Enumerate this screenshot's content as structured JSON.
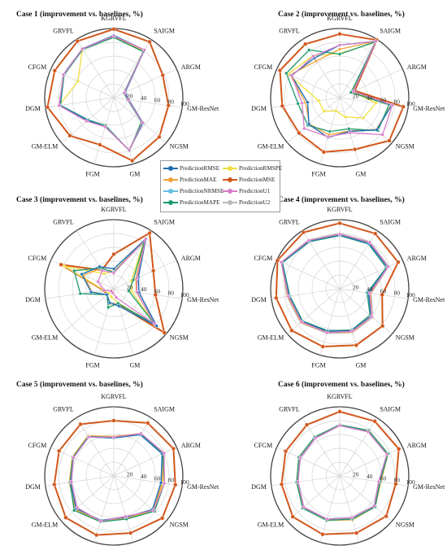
{
  "chart_data": [
    {
      "type": "radar",
      "title": "Case 1  (improvement vs. baselines, %)",
      "categories": [
        "KGRVFL",
        "SAIGM",
        "ARGM",
        "GM-ResNet",
        "NGSM",
        "GM",
        "FGM",
        "GM-ELM",
        "DGM",
        "CFGM",
        "GRVFL"
      ],
      "rlim": [
        0,
        100
      ],
      "rticks": [
        20,
        40,
        60,
        80,
        100
      ],
      "series": [
        {
          "name": "PredictionRMSE",
          "values": [
            90,
            82,
            18,
            22,
            56,
            79,
            44,
            50,
            79,
            80,
            84
          ]
        },
        {
          "name": "PredictionMAE",
          "values": [
            88,
            80,
            16,
            21,
            55,
            80,
            44,
            50,
            80,
            80,
            83
          ]
        },
        {
          "name": "PredictionNRMSE",
          "values": [
            90,
            82,
            18,
            22,
            56,
            79,
            44,
            50,
            79,
            80,
            84
          ]
        },
        {
          "name": "PredictionMAPE",
          "values": [
            87,
            79,
            16,
            20,
            53,
            80,
            42,
            49,
            78,
            79,
            83
          ]
        },
        {
          "name": "PredictionRMSPE",
          "values": [
            88,
            82,
            17,
            21,
            56,
            79,
            44,
            50,
            80,
            57,
            84
          ]
        },
        {
          "name": "PredictionMSE",
          "values": [
            99,
            96,
            78,
            80,
            87,
            95,
            71,
            84,
            97,
            94,
            97
          ]
        },
        {
          "name": "PredictionU1",
          "values": [
            89,
            82,
            17,
            21,
            55,
            79,
            44,
            52,
            80,
            80,
            84
          ]
        },
        {
          "name": "PredictionU2",
          "values": [
            90,
            82,
            18,
            22,
            56,
            79,
            44,
            50,
            79,
            80,
            84
          ]
        }
      ]
    },
    {
      "type": "radar",
      "title": "Case 2  (improvement vs. baselines, %)",
      "categories": [
        "KGRVFL",
        "SAIGM",
        "ARGM",
        "GM-ResNet",
        "NGSM",
        "GM",
        "FGM",
        "GM-ELM",
        "DGM",
        "CFGM",
        "GRVFL"
      ],
      "rlim": [
        0,
        100
      ],
      "rticks": [
        20,
        40,
        60,
        80,
        100
      ],
      "series": [
        {
          "name": "PredictionRMSE",
          "values": [
            76,
            97,
            22,
            76,
            71,
            51,
            60,
            59,
            47,
            77,
            68
          ]
        },
        {
          "name": "PredictionMAE",
          "values": [
            70,
            97,
            20,
            75,
            70,
            50,
            56,
            58,
            50,
            79,
            63
          ]
        },
        {
          "name": "PredictionNRMSE",
          "values": [
            76,
            97,
            22,
            76,
            71,
            51,
            60,
            59,
            47,
            77,
            68
          ]
        },
        {
          "name": "PredictionMAPE",
          "values": [
            63,
            96,
            18,
            72,
            73,
            47,
            51,
            61,
            61,
            85,
            82
          ]
        },
        {
          "name": "PredictionRMSPE",
          "values": [
            64,
            95,
            20,
            53,
            45,
            29,
            20,
            30,
            31,
            82,
            72
          ]
        },
        {
          "name": "PredictionMSE",
          "values": [
            92,
            99,
            24,
            93,
            95,
            78,
            82,
            78,
            84,
            95,
            92
          ]
        },
        {
          "name": "PredictionU1",
          "values": [
            76,
            97,
            22,
            77,
            82,
            53,
            59,
            68,
            55,
            76,
            71
          ]
        },
        {
          "name": "PredictionU2",
          "values": [
            76,
            97,
            22,
            76,
            71,
            51,
            60,
            59,
            47,
            77,
            68
          ]
        }
      ]
    },
    {
      "type": "radar",
      "title": "Case 3  (improvement vs. baselines, %)",
      "categories": [
        "KGRVFL",
        "SAIGM",
        "ARGM",
        "GM-ResNet",
        "NGSM",
        "GM",
        "FGM",
        "GM-ELM",
        "DGM",
        "CFGM",
        "GRVFL"
      ],
      "rlim": [
        0,
        100
      ],
      "rticks": [
        20,
        40,
        60,
        80,
        100
      ],
      "series": [
        {
          "name": "PredictionRMSE",
          "values": [
            29,
            86,
            39,
            37,
            82,
            26,
            21,
            13,
            33,
            51,
            38
          ]
        },
        {
          "name": "PredictionMAE",
          "values": [
            25,
            84,
            35,
            33,
            81,
            25,
            22,
            13,
            32,
            48,
            35
          ]
        },
        {
          "name": "PredictionNRMSE",
          "values": [
            29,
            86,
            39,
            37,
            82,
            26,
            21,
            13,
            33,
            51,
            38
          ]
        },
        {
          "name": "PredictionMAPE",
          "values": [
            24,
            82,
            31,
            22,
            79,
            22,
            28,
            13,
            49,
            63,
            36
          ]
        },
        {
          "name": "PredictionRMSPE",
          "values": [
            25,
            80,
            28,
            26,
            80,
            21,
            12,
            10,
            14,
            79,
            26
          ]
        },
        {
          "name": "PredictionMSE",
          "values": [
            50,
            96,
            63,
            61,
            97,
            24,
            22,
            13,
            15,
            84,
            32
          ]
        },
        {
          "name": "PredictionU1",
          "values": [
            23,
            85,
            37,
            34,
            78,
            13,
            6,
            5,
            14,
            25,
            31
          ]
        },
        {
          "name": "PredictionU2",
          "values": [
            29,
            86,
            39,
            37,
            82,
            26,
            21,
            13,
            33,
            51,
            38
          ]
        }
      ]
    },
    {
      "type": "radar",
      "title": "Case 4  (improvement vs. baselines, %)",
      "categories": [
        "KGRVFL",
        "SAIGM",
        "ARGM",
        "GM-ResNet",
        "NGSM",
        "GM",
        "FGM",
        "GM-ELM",
        "DGM",
        "CFGM",
        "GRVFL"
      ],
      "rlim": [
        0,
        100
      ],
      "rticks": [
        20,
        40,
        60,
        80,
        100
      ],
      "series": [
        {
          "name": "PredictionRMSE",
          "values": [
            78,
            78,
            76,
            42,
            60,
            63,
            64,
            72,
            74,
            92,
            82
          ]
        },
        {
          "name": "PredictionMAE",
          "values": [
            79,
            80,
            76,
            45,
            61,
            65,
            66,
            74,
            76,
            93,
            83
          ]
        },
        {
          "name": "PredictionNRMSE",
          "values": [
            78,
            78,
            76,
            42,
            60,
            63,
            64,
            72,
            74,
            92,
            82
          ]
        },
        {
          "name": "PredictionMAPE",
          "values": [
            77,
            77,
            74,
            40,
            58,
            62,
            63,
            71,
            73,
            91,
            81
          ]
        },
        {
          "name": "PredictionRMSPE",
          "values": [
            79,
            79,
            77,
            43,
            61,
            64,
            65,
            73,
            75,
            92,
            83
          ]
        },
        {
          "name": "PredictionMSE",
          "values": [
            95,
            95,
            93,
            62,
            82,
            85,
            87,
            92,
            93,
            99,
            97
          ]
        },
        {
          "name": "PredictionU1",
          "values": [
            79,
            80,
            77,
            44,
            61,
            64,
            66,
            73,
            75,
            93,
            83
          ]
        },
        {
          "name": "PredictionU2",
          "values": [
            80,
            81,
            78,
            46,
            63,
            66,
            67,
            75,
            77,
            93,
            84
          ]
        }
      ]
    },
    {
      "type": "radar",
      "title": "Case 5  (improvement vs. baselines, %)",
      "categories": [
        "KGRVFL",
        "SAIGM",
        "ARGM",
        "GM-ResNet",
        "NGSM",
        "GM",
        "FGM",
        "GM-ELM",
        "DGM",
        "CFGM",
        "GRVFL"
      ],
      "rlim": [
        0,
        100
      ],
      "rticks": [
        20,
        40,
        60,
        80,
        100
      ],
      "series": [
        {
          "name": "PredictionRMSE",
          "values": [
            55,
            71,
            77,
            69,
            74,
            62,
            67,
            72,
            63,
            64,
            67
          ]
        },
        {
          "name": "PredictionMAE",
          "values": [
            57,
            73,
            79,
            71,
            76,
            64,
            69,
            74,
            65,
            66,
            69
          ]
        },
        {
          "name": "PredictionNRMSE",
          "values": [
            55,
            71,
            77,
            69,
            74,
            62,
            67,
            72,
            63,
            64,
            67
          ]
        },
        {
          "name": "PredictionMAPE",
          "values": [
            56,
            72,
            78,
            74,
            78,
            65,
            69,
            76,
            64,
            65,
            68
          ]
        },
        {
          "name": "PredictionRMSPE",
          "values": [
            57,
            73,
            79,
            72,
            77,
            64,
            69,
            74,
            65,
            66,
            69
          ]
        },
        {
          "name": "PredictionMSE",
          "values": [
            80,
            91,
            95,
            90,
            93,
            86,
            89,
            92,
            87,
            87,
            89
          ]
        },
        {
          "name": "PredictionU1",
          "values": [
            56,
            73,
            80,
            74,
            76,
            61,
            68,
            70,
            62,
            64,
            67
          ]
        },
        {
          "name": "PredictionU2",
          "values": [
            56,
            72,
            78,
            70,
            75,
            63,
            68,
            73,
            64,
            65,
            68
          ]
        }
      ]
    },
    {
      "type": "radar",
      "title": "Case 6  (improvement vs. baselines, %)",
      "categories": [
        "KGRVFL",
        "SAIGM",
        "ARGM",
        "GM-ResNet",
        "NGSM",
        "GM",
        "FGM",
        "GM-ELM",
        "DGM",
        "CFGM",
        "GRVFL"
      ],
      "rlim": [
        0,
        100
      ],
      "rticks": [
        20,
        40,
        60,
        80,
        100
      ],
      "series": [
        {
          "name": "PredictionRMSE",
          "values": [
            73,
            76,
            75,
            57,
            66,
            63,
            65,
            69,
            61,
            63,
            65
          ]
        },
        {
          "name": "PredictionMAE",
          "values": [
            74,
            78,
            77,
            60,
            68,
            66,
            67,
            71,
            63,
            65,
            67
          ]
        },
        {
          "name": "PredictionNRMSE",
          "values": [
            73,
            76,
            75,
            57,
            66,
            63,
            65,
            69,
            61,
            63,
            65
          ]
        },
        {
          "name": "PredictionMAPE",
          "values": [
            74,
            78,
            77,
            59,
            68,
            65,
            67,
            71,
            63,
            65,
            67
          ]
        },
        {
          "name": "PredictionRMSPE",
          "values": [
            74,
            78,
            77,
            60,
            68,
            66,
            67,
            71,
            63,
            65,
            67
          ]
        },
        {
          "name": "PredictionMSE",
          "values": [
            93,
            94,
            94,
            82,
            89,
            86,
            88,
            90,
            85,
            86,
            88
          ]
        },
        {
          "name": "PredictionU1",
          "values": [
            73,
            76,
            75,
            57,
            66,
            63,
            65,
            69,
            61,
            63,
            65
          ]
        },
        {
          "name": "PredictionU2",
          "values": [
            74,
            77,
            76,
            58,
            67,
            64,
            66,
            70,
            62,
            64,
            66
          ]
        }
      ]
    }
  ],
  "legend": {
    "items": [
      {
        "label": "PredictionRMSE",
        "color": "#1f6fb2"
      },
      {
        "label": "PredictionRMSPE",
        "color": "#f0df40"
      },
      {
        "label": "PredictionMAE",
        "color": "#f2a33a"
      },
      {
        "label": "PredictionMSE",
        "color": "#d2571c"
      },
      {
        "label": "PredictionNRMSE",
        "color": "#66bfe6"
      },
      {
        "label": "PredictionU1",
        "color": "#d97cc8"
      },
      {
        "label": "PredictionMAPE",
        "color": "#1c9a6c"
      },
      {
        "label": "PredictionU2",
        "color": "#b8b8b8"
      }
    ]
  },
  "colors": {
    "PredictionRMSE": "#1f6fb2",
    "PredictionMAE": "#f2a33a",
    "PredictionNRMSE": "#66bfe6",
    "PredictionMAPE": "#1c9a6c",
    "PredictionRMSPE": "#f0df40",
    "PredictionMSE": "#d2571c",
    "PredictionU1": "#d97cc8",
    "PredictionU2": "#b8b8b8"
  }
}
